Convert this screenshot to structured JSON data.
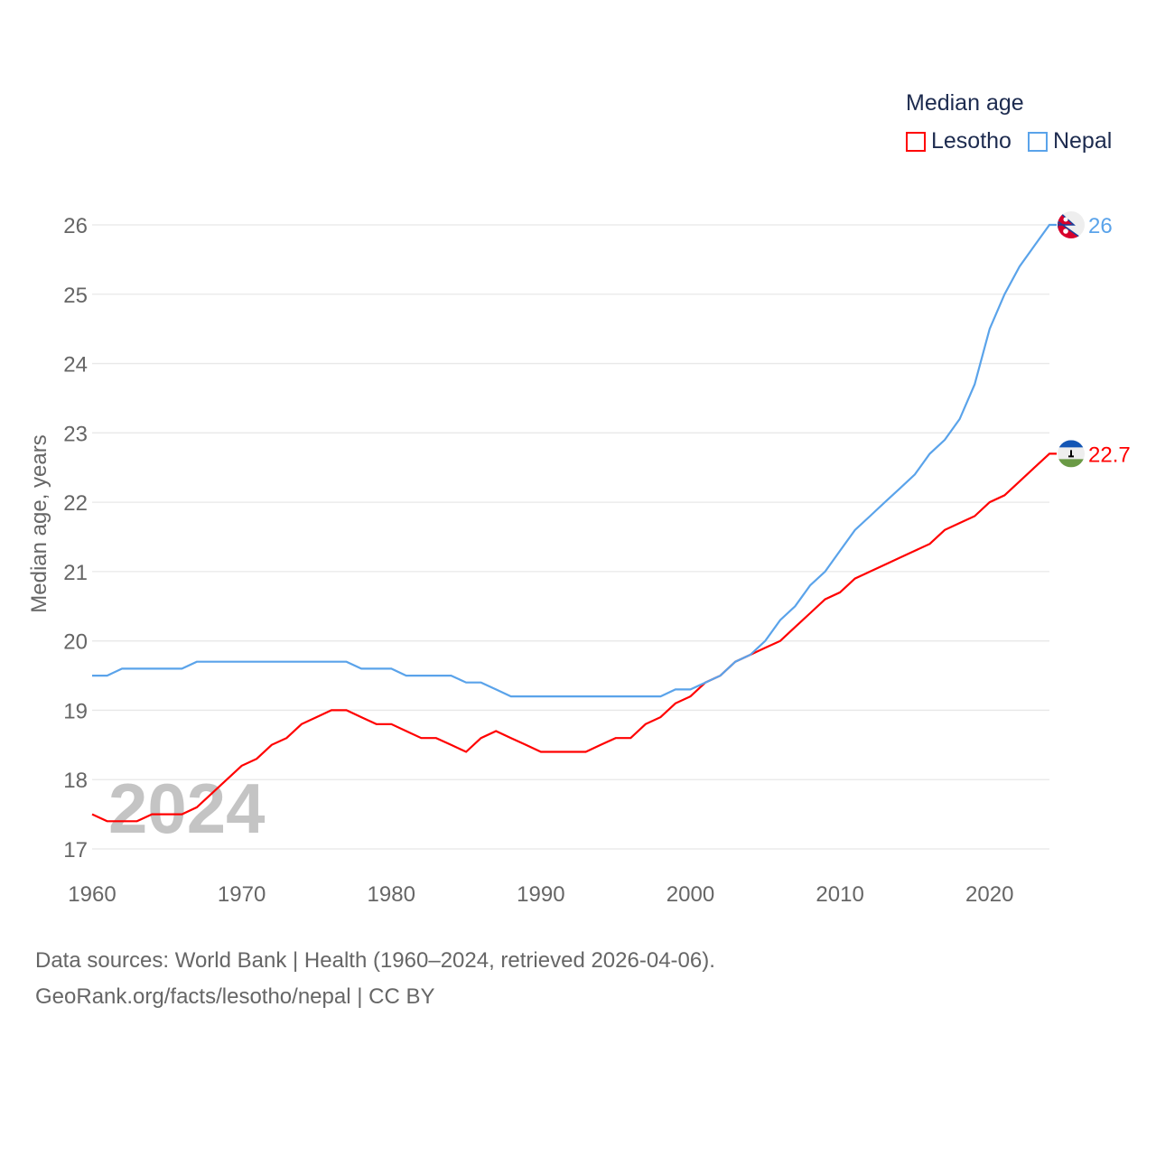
{
  "chart_data": {
    "type": "line",
    "title": "Median age",
    "ylabel": "Median age, years",
    "xlabel": "",
    "xlim": [
      1960,
      2024
    ],
    "ylim": [
      17,
      26
    ],
    "xticks": [
      "1960",
      "1970",
      "1980",
      "1990",
      "2000",
      "2010",
      "2020"
    ],
    "yticks": [
      "17",
      "18",
      "19",
      "20",
      "21",
      "22",
      "23",
      "24",
      "25",
      "26"
    ],
    "grid": true,
    "legend_position": "top-right",
    "year_watermark": "2024",
    "x": [
      1960,
      1961,
      1962,
      1963,
      1964,
      1965,
      1966,
      1967,
      1968,
      1969,
      1970,
      1971,
      1972,
      1973,
      1974,
      1975,
      1976,
      1977,
      1978,
      1979,
      1980,
      1981,
      1982,
      1983,
      1984,
      1985,
      1986,
      1987,
      1988,
      1989,
      1990,
      1991,
      1992,
      1993,
      1994,
      1995,
      1996,
      1997,
      1998,
      1999,
      2000,
      2001,
      2002,
      2003,
      2004,
      2005,
      2006,
      2007,
      2008,
      2009,
      2010,
      2011,
      2012,
      2013,
      2014,
      2015,
      2016,
      2017,
      2018,
      2019,
      2020,
      2021,
      2022,
      2023,
      2024
    ],
    "series": [
      {
        "name": "Lesotho",
        "color": "#ff0000",
        "end_label": "22.7",
        "flag": "lesotho-flag",
        "values": [
          17.5,
          17.4,
          17.4,
          17.4,
          17.5,
          17.5,
          17.5,
          17.6,
          17.8,
          18.0,
          18.2,
          18.3,
          18.5,
          18.6,
          18.8,
          18.9,
          19.0,
          19.0,
          18.9,
          18.8,
          18.8,
          18.7,
          18.6,
          18.6,
          18.5,
          18.4,
          18.6,
          18.7,
          18.6,
          18.5,
          18.4,
          18.4,
          18.4,
          18.4,
          18.5,
          18.6,
          18.6,
          18.8,
          18.9,
          19.1,
          19.2,
          19.4,
          19.5,
          19.7,
          19.8,
          19.9,
          20.0,
          20.2,
          20.4,
          20.6,
          20.7,
          20.9,
          21.0,
          21.1,
          21.2,
          21.3,
          21.4,
          21.6,
          21.7,
          21.8,
          22.0,
          22.1,
          22.3,
          22.5,
          22.7
        ]
      },
      {
        "name": "Nepal",
        "color": "#5aa3ea",
        "end_label": "26",
        "flag": "nepal-flag",
        "values": [
          19.5,
          19.5,
          19.6,
          19.6,
          19.6,
          19.6,
          19.6,
          19.7,
          19.7,
          19.7,
          19.7,
          19.7,
          19.7,
          19.7,
          19.7,
          19.7,
          19.7,
          19.7,
          19.6,
          19.6,
          19.6,
          19.5,
          19.5,
          19.5,
          19.5,
          19.4,
          19.4,
          19.3,
          19.2,
          19.2,
          19.2,
          19.2,
          19.2,
          19.2,
          19.2,
          19.2,
          19.2,
          19.2,
          19.2,
          19.3,
          19.3,
          19.4,
          19.5,
          19.7,
          19.8,
          20.0,
          20.3,
          20.5,
          20.8,
          21.0,
          21.3,
          21.6,
          21.8,
          22.0,
          22.2,
          22.4,
          22.7,
          22.9,
          23.2,
          23.7,
          24.5,
          25.0,
          25.4,
          25.7,
          26.0
        ]
      }
    ]
  },
  "source": {
    "line1": "Data sources: World Bank | Health (1960–2024, retrieved 2026-04-06).",
    "line2": "GeoRank.org/facts/lesotho/nepal | CC BY"
  }
}
